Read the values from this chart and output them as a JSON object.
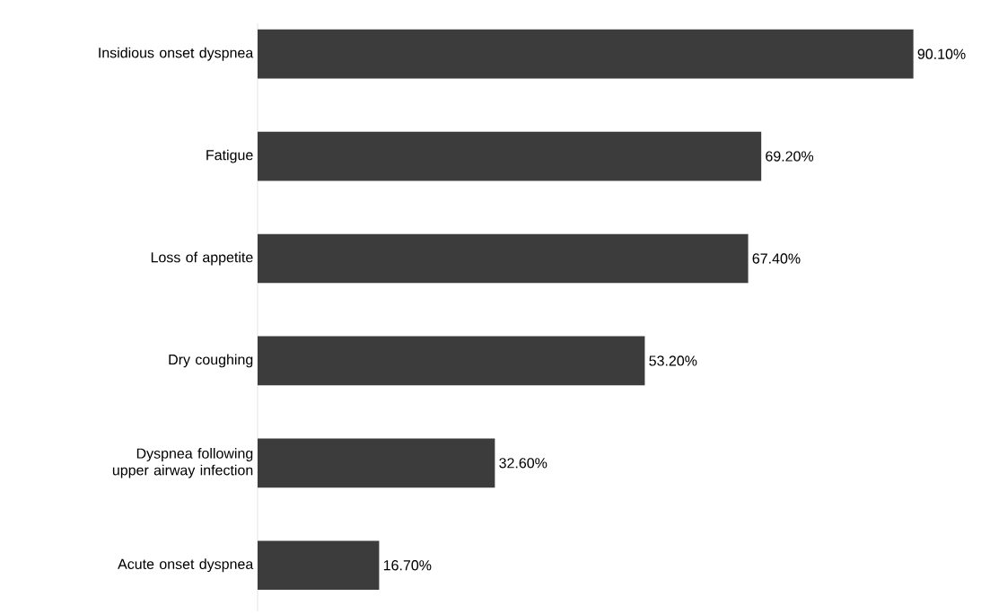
{
  "chart_data": {
    "type": "bar",
    "orientation": "horizontal",
    "categories": [
      "Insidious onset dyspnea",
      "Fatigue",
      "Loss of appetite",
      "Dry coughing",
      "Dyspnea following upper airway infection",
      "Acute onset dyspnea"
    ],
    "values": [
      90.1,
      69.2,
      67.4,
      53.2,
      32.6,
      16.7
    ],
    "value_labels": [
      "90.10%",
      "69.20%",
      "67.40%",
      "53.20%",
      "32.60%",
      "16.70%"
    ],
    "color": "#3c3c3c"
  }
}
